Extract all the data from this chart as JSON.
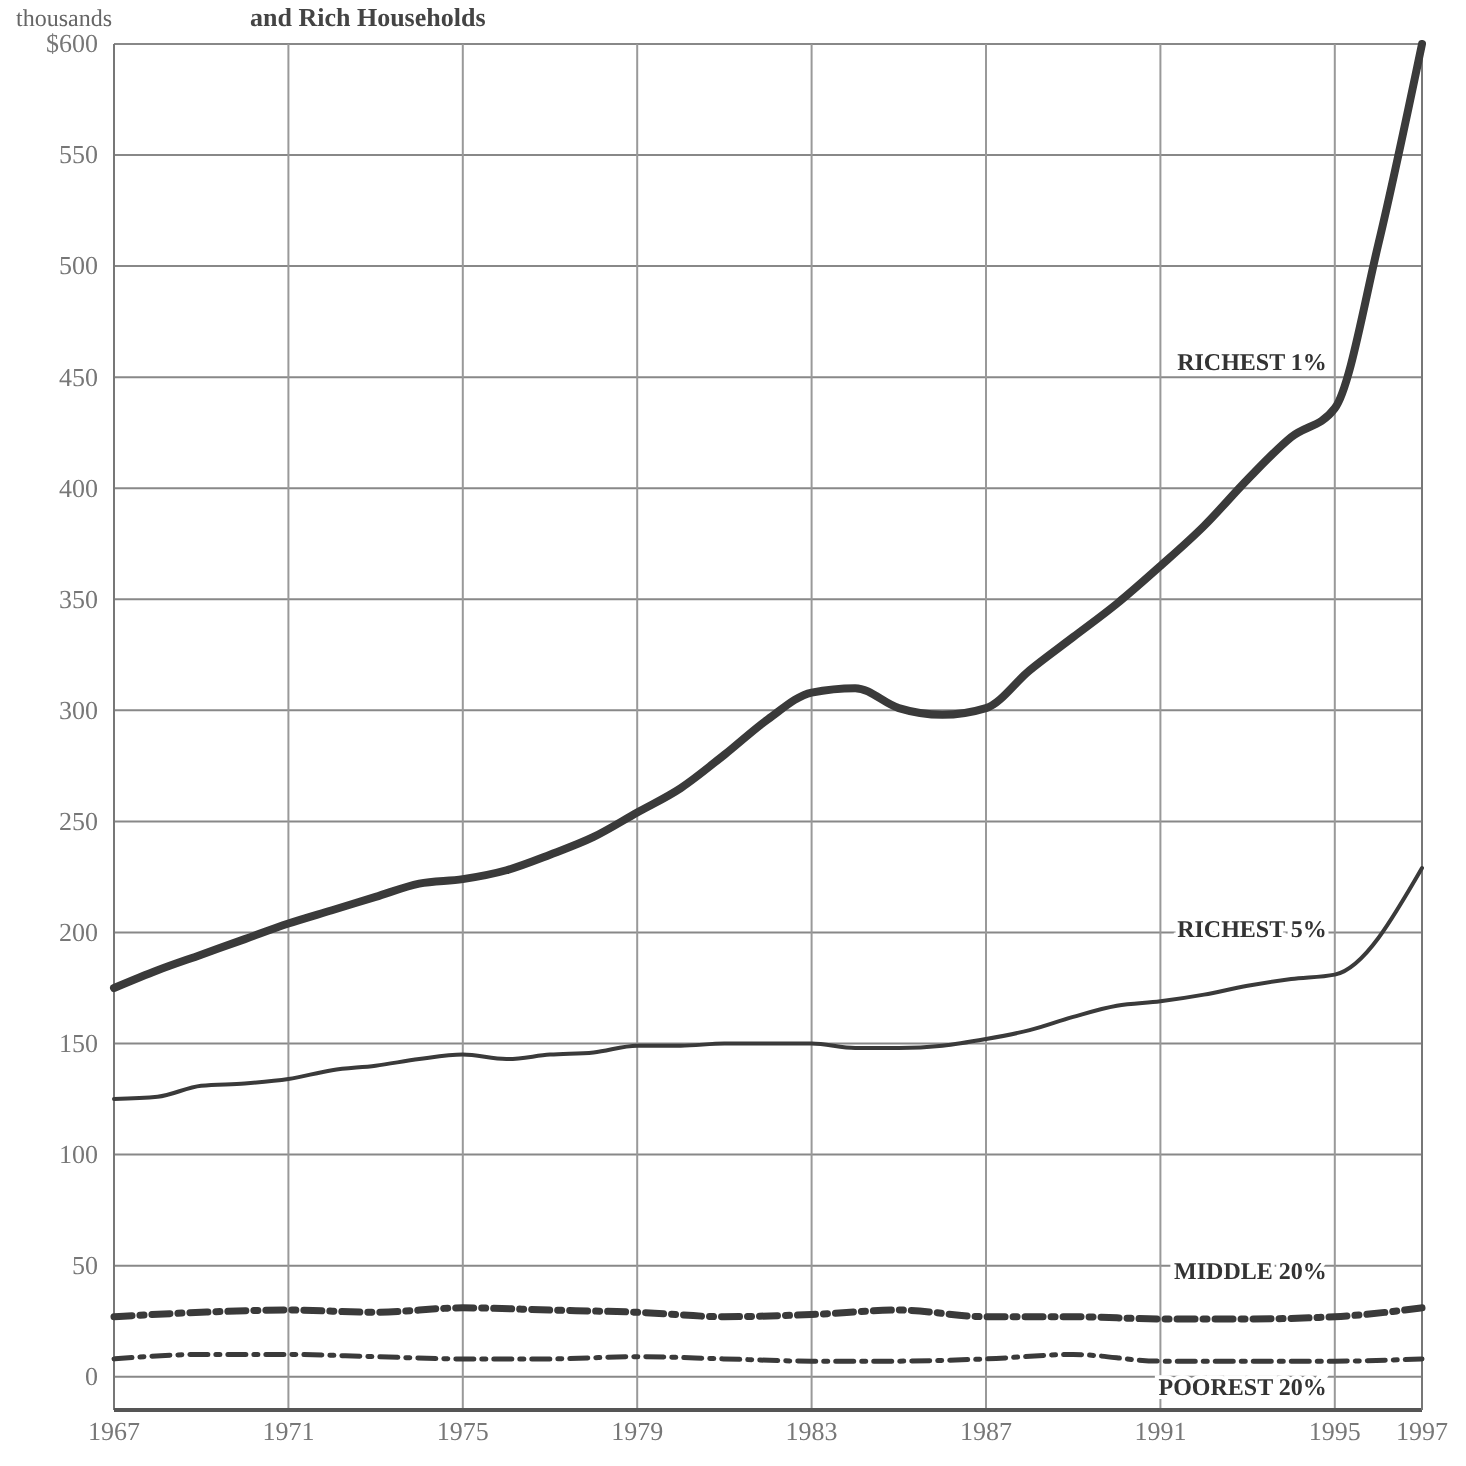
{
  "chart_data": {
    "type": "line",
    "title": "and Rich Households",
    "ylabel": "thousands",
    "xlim": [
      1967,
      1997
    ],
    "xticks": [
      1967,
      1971,
      1975,
      1979,
      1983,
      1987,
      1991,
      1995,
      1997
    ],
    "ylim": [
      -15,
      600
    ],
    "yticks": [
      0,
      50,
      100,
      150,
      200,
      250,
      300,
      350,
      400,
      450,
      500,
      550,
      {
        "value": 600,
        "label": "$600"
      }
    ],
    "grid": true,
    "legend": false,
    "marker": "none",
    "series": [
      {
        "name": "RICHEST 1%",
        "color": "#3a3a3a",
        "line_style": "solid",
        "x": [
          1967,
          1968,
          1969,
          1970,
          1971,
          1972,
          1973,
          1974,
          1975,
          1976,
          1977,
          1978,
          1979,
          1980,
          1981,
          1982,
          1983,
          1984,
          1985,
          1986,
          1987,
          1988,
          1989,
          1990,
          1991,
          1992,
          1993,
          1994,
          1995,
          1996,
          1997
        ],
        "values": [
          175,
          183,
          190,
          197,
          204,
          210,
          216,
          222,
          224,
          228,
          235,
          243,
          254,
          265,
          280,
          296,
          308,
          310,
          301,
          298,
          301,
          318,
          333,
          348,
          365,
          383,
          404,
          423,
          436,
          510,
          600
        ]
      },
      {
        "name": "RICHEST 5%",
        "color": "#3a3a3a",
        "line_style": "solid",
        "x": [
          1967,
          1968,
          1969,
          1970,
          1971,
          1972,
          1973,
          1974,
          1975,
          1976,
          1977,
          1978,
          1979,
          1980,
          1981,
          1982,
          1983,
          1984,
          1985,
          1986,
          1987,
          1988,
          1989,
          1990,
          1991,
          1992,
          1993,
          1994,
          1995,
          1997
        ],
        "values": [
          125,
          126,
          131,
          132,
          134,
          138,
          140,
          143,
          145,
          143,
          145,
          146,
          149,
          149,
          150,
          150,
          150,
          148,
          148,
          149,
          152,
          156,
          162,
          167,
          169,
          172,
          176,
          179,
          181,
          229
        ]
      },
      {
        "name": "MIDDLE 20%",
        "color": "#3a3a3a",
        "line_style": "dashed",
        "x": [
          1967,
          1969,
          1971,
          1973,
          1975,
          1977,
          1979,
          1981,
          1983,
          1985,
          1987,
          1989,
          1991,
          1993,
          1995,
          1997
        ],
        "values": [
          27,
          29,
          30,
          29,
          31,
          30,
          29,
          27,
          28,
          30,
          27,
          27,
          26,
          26,
          27,
          31
        ]
      },
      {
        "name": "POOREST 20%",
        "color": "#3a3a3a",
        "line_style": "dashed",
        "x": [
          1967,
          1969,
          1971,
          1973,
          1975,
          1977,
          1979,
          1981,
          1983,
          1985,
          1987,
          1989,
          1991,
          1993,
          1995,
          1997
        ],
        "values": [
          8,
          10,
          10,
          9,
          8,
          8,
          9,
          8,
          7,
          7,
          8,
          10,
          7,
          7,
          7,
          8
        ]
      }
    ]
  }
}
